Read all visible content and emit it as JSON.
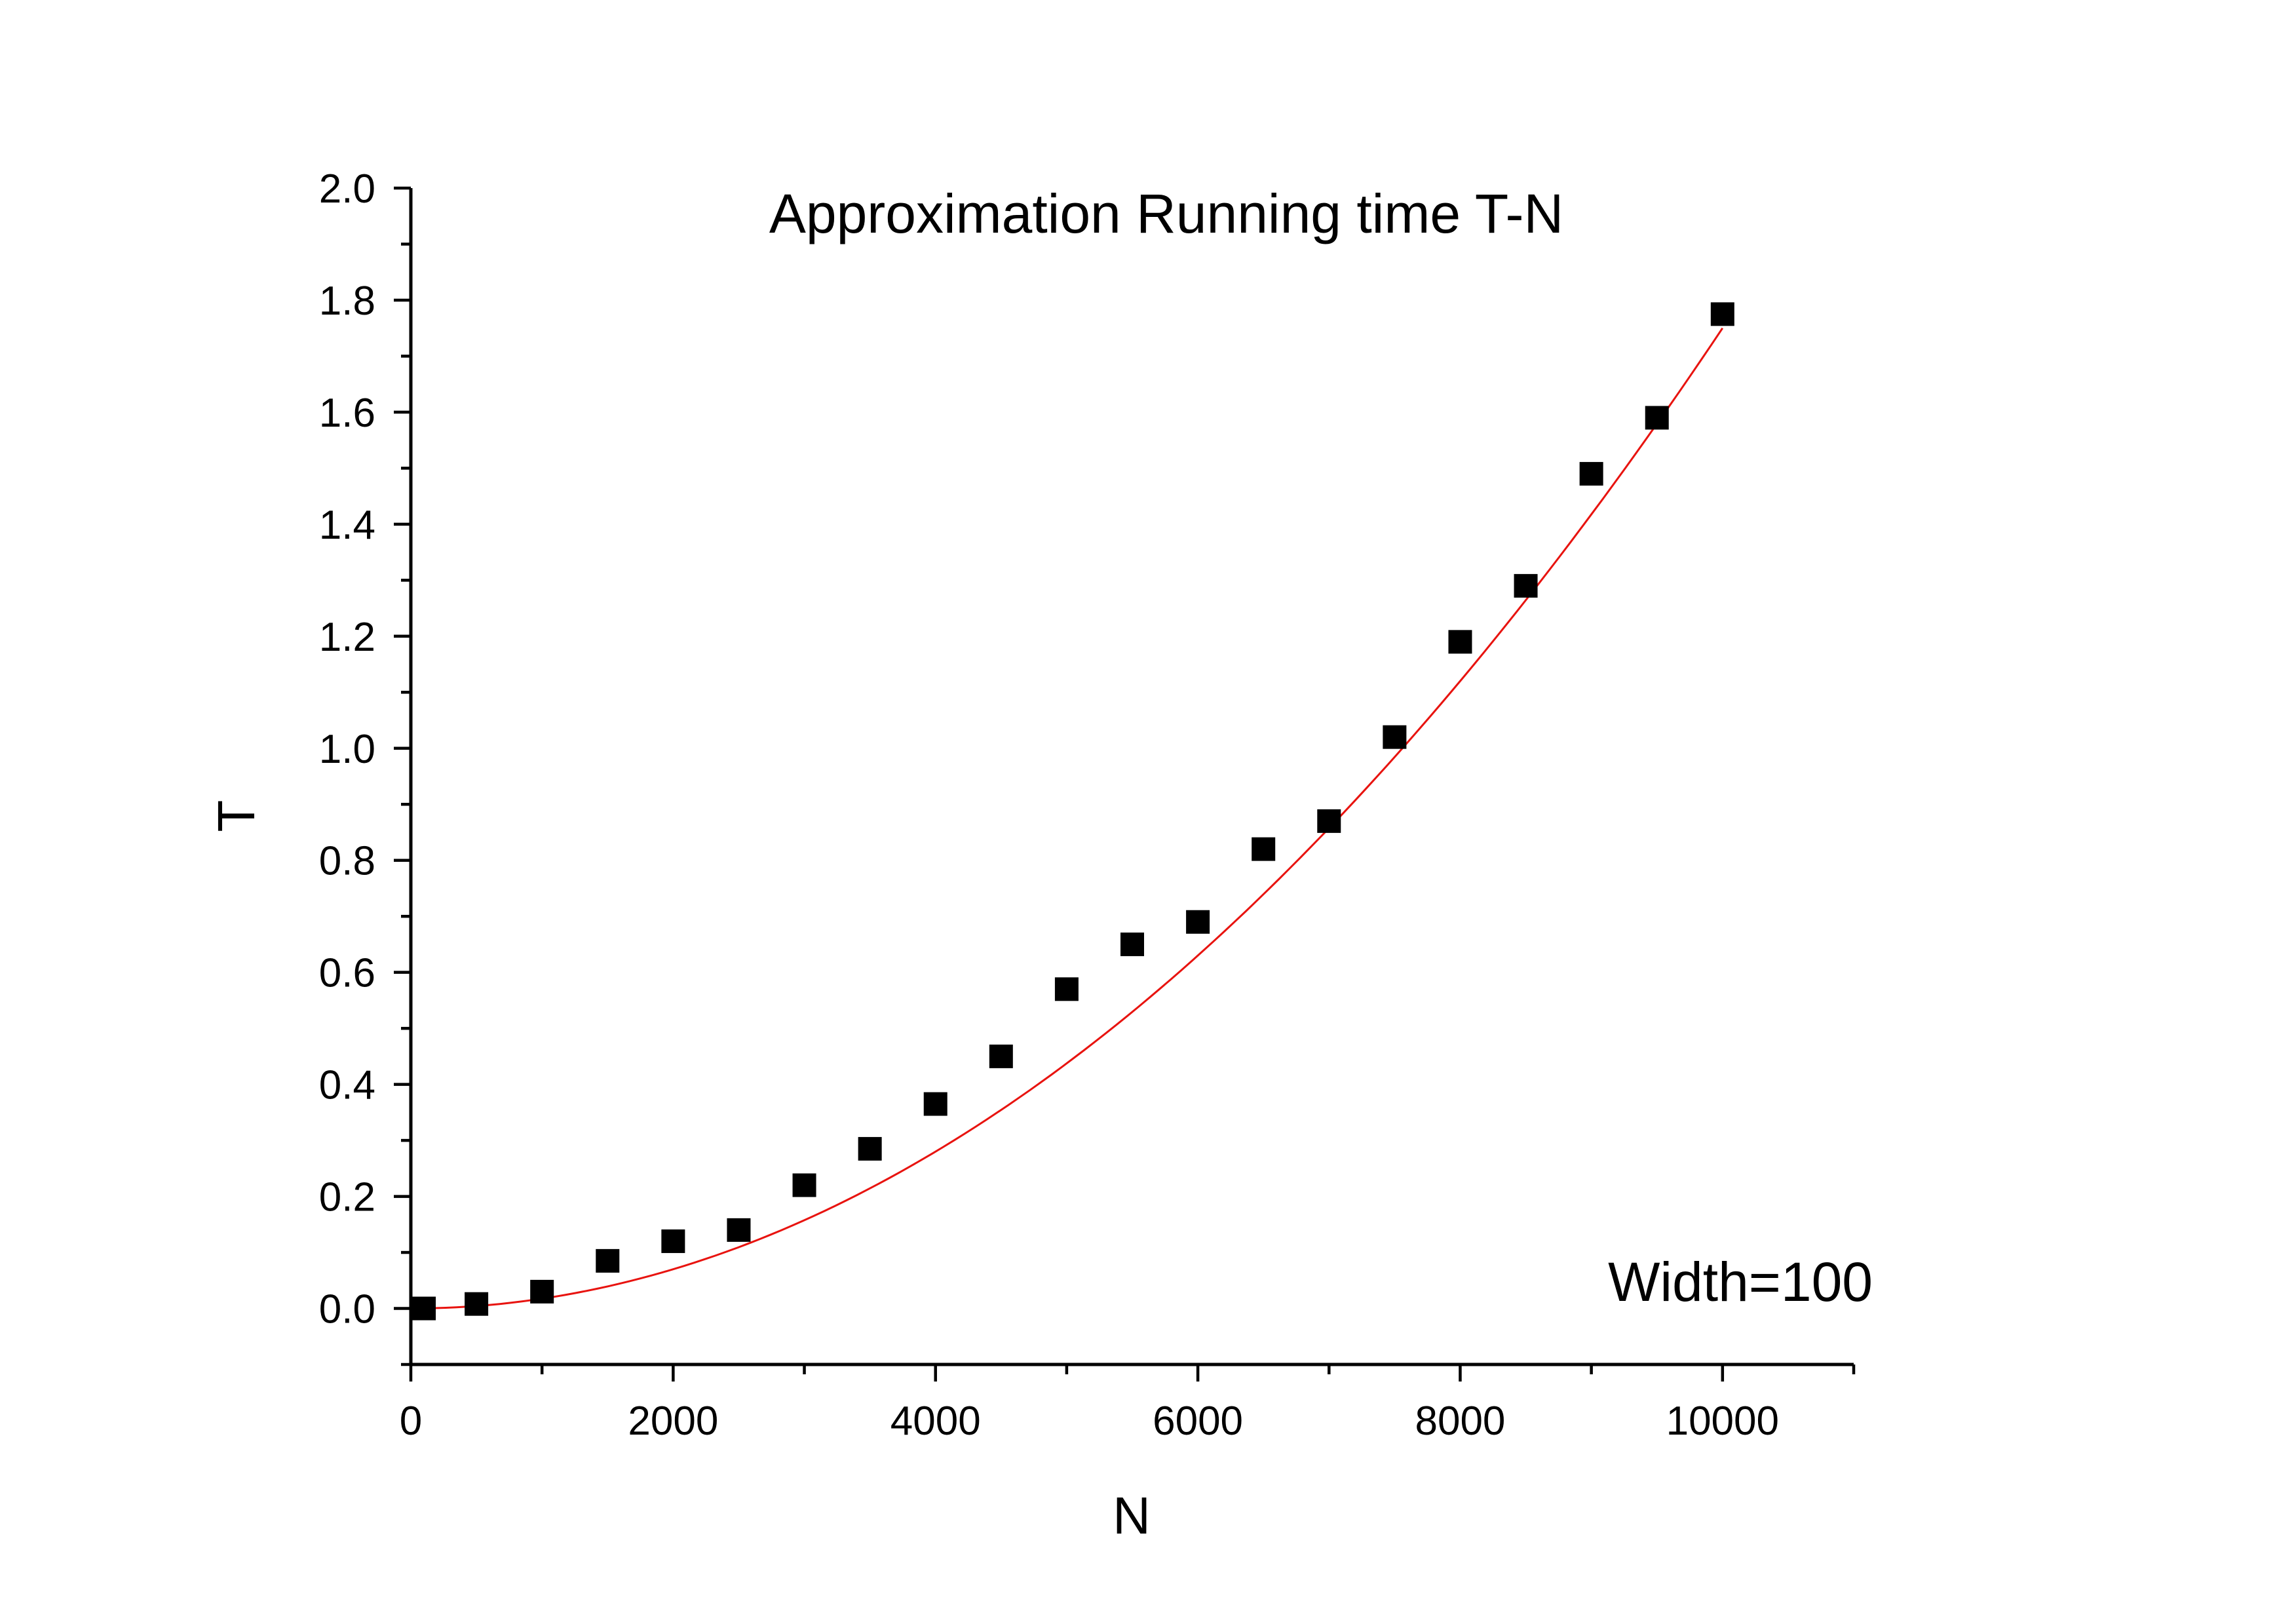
{
  "chart_data": {
    "type": "scatter",
    "title": "Approximation Running time T-N",
    "xlabel": "N",
    "ylabel": "T",
    "annotation": "Width=100",
    "xlim": [
      0,
      11000
    ],
    "ylim": [
      -0.1,
      2.0
    ],
    "x_ticks": [
      0,
      2000,
      4000,
      6000,
      8000,
      10000
    ],
    "x_tick_labels": [
      "0",
      "2000",
      "4000",
      "6000",
      "8000",
      "10000"
    ],
    "y_ticks": [
      0.0,
      0.2,
      0.4,
      0.6,
      0.8,
      1.0,
      1.2,
      1.4,
      1.6,
      1.8,
      2.0
    ],
    "y_tick_labels": [
      "0.0",
      "0.2",
      "0.4",
      "0.6",
      "0.8",
      "1.0",
      "1.2",
      "1.4",
      "1.6",
      "1.8",
      "2.0"
    ],
    "grid": false,
    "series": [
      {
        "type": "scatter",
        "marker": "square",
        "color": "#000000",
        "x": [
          100,
          500,
          1000,
          1500,
          2000,
          2500,
          3000,
          3500,
          4000,
          4500,
          5000,
          5500,
          6000,
          6500,
          7000,
          7500,
          8000,
          8500,
          9000,
          9500,
          10000
        ],
        "y": [
          0.0,
          0.008,
          0.03,
          0.085,
          0.12,
          0.14,
          0.22,
          0.285,
          0.365,
          0.45,
          0.57,
          0.65,
          0.69,
          0.82,
          0.87,
          1.02,
          1.19,
          1.29,
          1.49,
          1.59,
          1.775
        ]
      },
      {
        "type": "line",
        "fit": "quadratic",
        "color": "#e8130f",
        "coefficients": [
          0.0,
          0.0,
          1.75e-08
        ],
        "x_range": [
          100,
          10000
        ]
      }
    ]
  }
}
